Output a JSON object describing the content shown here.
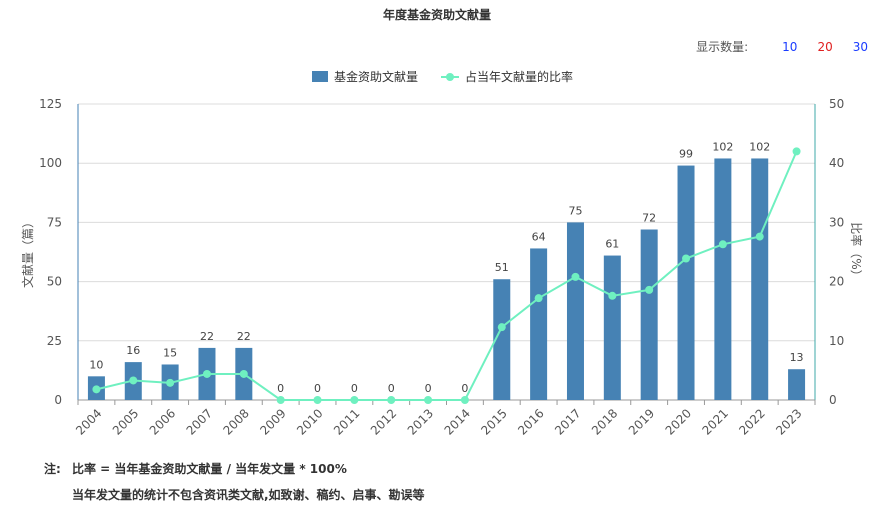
{
  "title": "年度基金资助文献量",
  "count_selector": {
    "label": "显示数量:",
    "options": [
      "10",
      "20",
      "30"
    ]
  },
  "notes": {
    "prefix": "注:",
    "line1": "比率 = 当年基金资助文献量 / 当年发文量 * 100%",
    "line2": "当年发文量的统计不包含资讯类文献,如致谢、稿约、启事、勘误等"
  },
  "colors": {
    "bar": "#4682b4",
    "line": "#6ff0c0",
    "axis_left": "#4682b4",
    "axis_right": "#3fa8a8",
    "grid": "#dcdcdc"
  },
  "chart_data": {
    "type": "bar",
    "categories": [
      "2004",
      "2005",
      "2006",
      "2007",
      "2008",
      "2009",
      "2010",
      "2011",
      "2012",
      "2013",
      "2014",
      "2015",
      "2016",
      "2017",
      "2018",
      "2019",
      "2020",
      "2021",
      "2022",
      "2023"
    ],
    "series": [
      {
        "name": "基金资助文献量",
        "type": "bar",
        "axis": "left",
        "values": [
          10,
          16,
          15,
          22,
          22,
          0,
          0,
          0,
          0,
          0,
          0,
          51,
          64,
          75,
          61,
          72,
          99,
          102,
          102,
          13
        ]
      },
      {
        "name": "占当年文献量的比率",
        "type": "line",
        "axis": "right",
        "values": [
          1.8,
          3.3,
          2.9,
          4.4,
          4.4,
          0,
          0,
          0,
          0,
          0,
          0,
          12.3,
          17.2,
          20.8,
          17.6,
          18.6,
          23.9,
          26.3,
          27.6,
          42.0
        ]
      }
    ],
    "ylabel": "文献量（篇）",
    "y2label": "比率（%）",
    "ylim": [
      0,
      125
    ],
    "y2lim": [
      0,
      50
    ],
    "yticks": [
      "0",
      "25",
      "50",
      "75",
      "100",
      "125"
    ],
    "y2ticks": [
      "0",
      "10",
      "20",
      "30",
      "40",
      "50"
    ],
    "grid": true,
    "legend_position": "top-center"
  }
}
